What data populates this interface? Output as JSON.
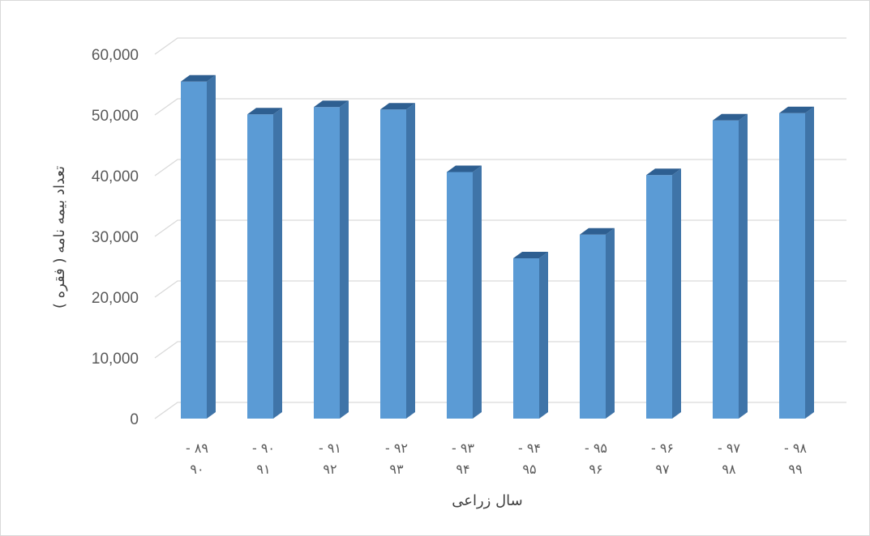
{
  "chart_data": {
    "type": "bar",
    "style": "3d-column",
    "categories": [
      {
        "line1": "- ۸۹",
        "line2": "۹۰"
      },
      {
        "line1": "- ۹۰",
        "line2": "۹۱"
      },
      {
        "line1": "- ۹۱",
        "line2": "۹۲"
      },
      {
        "line1": "- ۹۲",
        "line2": "۹۳"
      },
      {
        "line1": "- ۹۳",
        "line2": "۹۴"
      },
      {
        "line1": "- ۹۴",
        "line2": "۹۵"
      },
      {
        "line1": "- ۹۵",
        "line2": "۹۶"
      },
      {
        "line1": "- ۹۶",
        "line2": "۹۷"
      },
      {
        "line1": "- ۹۷",
        "line2": "۹۸"
      },
      {
        "line1": "- ۹۸",
        "line2": "۹۹"
      }
    ],
    "values": [
      55500,
      50100,
      51300,
      50900,
      40600,
      26400,
      30300,
      40100,
      49100,
      50300
    ],
    "ylim": [
      0,
      60000
    ],
    "yticks": [
      "0",
      "10,000",
      "20,000",
      "30,000",
      "40,000",
      "50,000",
      "60,000"
    ],
    "ytick_values": [
      0,
      10000,
      20000,
      30000,
      40000,
      50000,
      60000
    ],
    "xlabel": "سال زراعی",
    "ylabel": "تعداد بیمه نامه ( فقره )",
    "grid": true,
    "legend": "none",
    "colors": {
      "bar_front": "#5b9bd5",
      "bar_side": "#3f74a8",
      "bar_top": "#2e5f91",
      "gridline": "#d9d9d9",
      "text": "#595959"
    }
  }
}
